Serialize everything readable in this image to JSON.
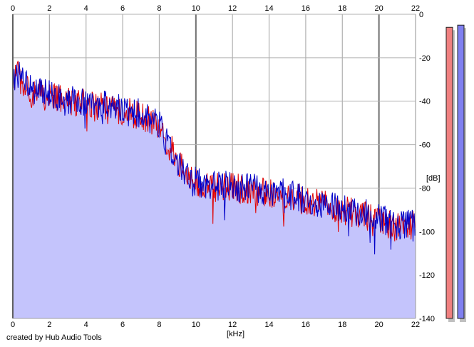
{
  "credit": "created by Hub Audio Tools",
  "chart_data": {
    "type": "area",
    "xlabel": "[kHz]",
    "ylabel": "[dB]",
    "xlim": [
      0,
      22
    ],
    "ylim": [
      -140,
      0
    ],
    "x_ticks": [
      0,
      2,
      4,
      6,
      8,
      10,
      12,
      14,
      16,
      18,
      20,
      22
    ],
    "y_ticks": [
      0,
      -20,
      -40,
      -60,
      -80,
      -100,
      -120,
      -140
    ],
    "grid": true,
    "fill_color": "#c4c4fc",
    "series": [
      {
        "color": "#e00000",
        "x": [
          0,
          0.3,
          0.6,
          1,
          1.5,
          2,
          2.5,
          3,
          3.5,
          4,
          4.5,
          5,
          5.5,
          6,
          6.5,
          7,
          7.5,
          8,
          8.5,
          9,
          9.5,
          10,
          11,
          12,
          13,
          14,
          15,
          16,
          17,
          18,
          19,
          20,
          21,
          22
        ],
        "y": [
          -30,
          -28,
          -33,
          -36,
          -37,
          -38,
          -39,
          -40,
          -40,
          -41,
          -43,
          -43,
          -45,
          -44,
          -45,
          -47,
          -49,
          -52,
          -60,
          -68,
          -74,
          -78,
          -80,
          -80,
          -81,
          -82,
          -84,
          -86,
          -88,
          -90,
          -92,
          -95,
          -98,
          -97
        ]
      },
      {
        "color": "#0000c8",
        "x": [
          0,
          0.3,
          0.6,
          1,
          1.5,
          2,
          2.5,
          3,
          3.5,
          4,
          4.5,
          5,
          5.5,
          6,
          6.5,
          7,
          7.5,
          8,
          8.5,
          9,
          9.5,
          10,
          11,
          12,
          13,
          14,
          15,
          16,
          17,
          18,
          19,
          20,
          21,
          22
        ],
        "y": [
          -29,
          -27,
          -32,
          -35,
          -36,
          -37,
          -38,
          -39,
          -39,
          -40,
          -42,
          -42,
          -44,
          -43,
          -44,
          -46,
          -48,
          -51,
          -59,
          -67,
          -73,
          -77,
          -79,
          -79,
          -80,
          -81,
          -83,
          -85,
          -87,
          -89,
          -91,
          -94,
          -97,
          -96
        ]
      }
    ],
    "level_meters": [
      {
        "color": "#f08080",
        "value": -6
      },
      {
        "color": "#8080f0",
        "value": -5
      }
    ]
  }
}
